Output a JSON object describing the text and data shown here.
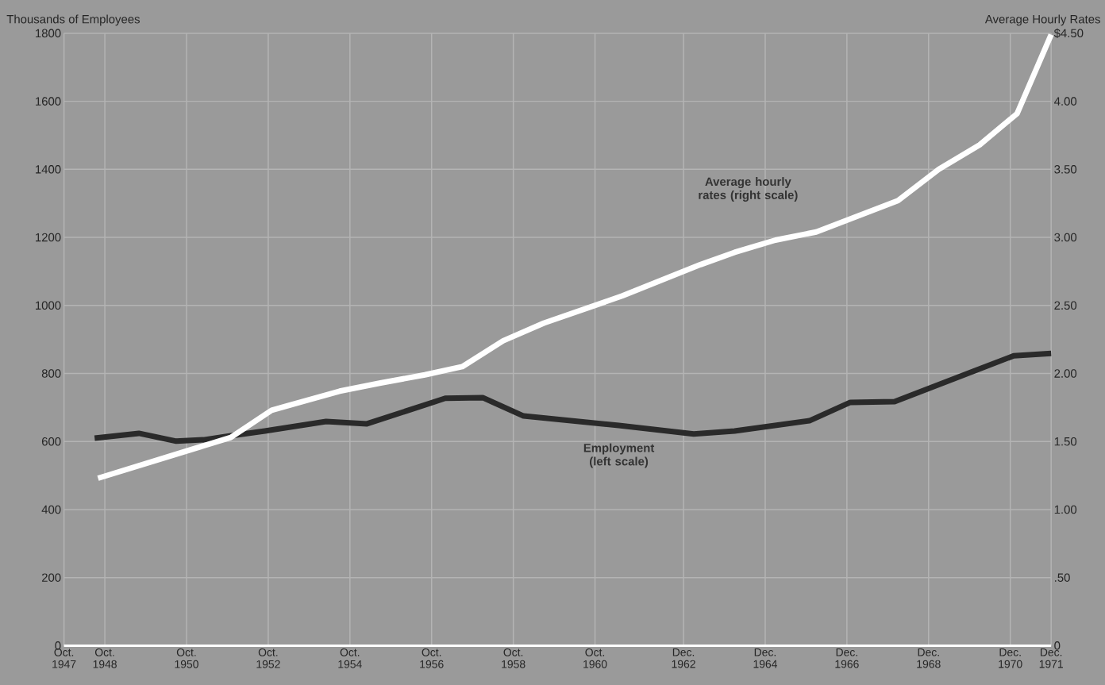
{
  "chart_data": {
    "type": "line",
    "ylabel": "Thousands of Employees",
    "y2label": "Average Hourly Rates",
    "xlim": [
      "1947-10",
      "1971-12"
    ],
    "xticks": [
      {
        "value": "1947-10",
        "label": "Oct. 1947"
      },
      {
        "value": "1948-10",
        "label": "Oct. 1948"
      },
      {
        "value": "1950-10",
        "label": "Oct. 1950"
      },
      {
        "value": "1952-10",
        "label": "Oct. 1952"
      },
      {
        "value": "1954-10",
        "label": "Oct. 1954"
      },
      {
        "value": "1956-10",
        "label": "Oct. 1956"
      },
      {
        "value": "1958-10",
        "label": "Oct. 1958"
      },
      {
        "value": "1960-10",
        "label": "Oct. 1960"
      },
      {
        "value": "1962-12",
        "label": "Dec. 1962"
      },
      {
        "value": "1964-12",
        "label": "Dec. 1964"
      },
      {
        "value": "1966-12",
        "label": "Dec. 1966"
      },
      {
        "value": "1968-12",
        "label": "Dec. 1968"
      },
      {
        "value": "1970-12",
        "label": "Dec. 1970"
      },
      {
        "value": "1971-12",
        "label": "Dec. 1971"
      }
    ],
    "ylim": [
      0,
      1800
    ],
    "yticks": [
      0,
      200,
      400,
      600,
      800,
      1000,
      1200,
      1400,
      1600,
      1800
    ],
    "y2lim": [
      0,
      4.5
    ],
    "y2ticks": [
      0,
      {
        "value": 0.5,
        "label": ".50"
      },
      {
        "value": 1,
        "label": "1.00"
      },
      {
        "value": 1.5,
        "label": "1.50"
      },
      {
        "value": 2,
        "label": "2.00"
      },
      {
        "value": 2.5,
        "label": "2.50"
      },
      {
        "value": 3,
        "label": "3.00"
      },
      {
        "value": 3.5,
        "label": "3.50"
      },
      {
        "value": 4,
        "label": "4.00"
      },
      {
        "value": 4.5,
        "label": "$4.50"
      }
    ],
    "grid": true,
    "series": [
      {
        "name": "Employment (left scale)",
        "color": "#2a2a2a",
        "x": [
          "1948-07",
          "1949-08",
          "1950-07",
          "1951-03",
          "1951-11",
          "1952-09",
          "1954-03",
          "1955-03",
          "1957-02",
          "1958-01",
          "1959-01",
          "1961-05",
          "1963-03",
          "1964-03",
          "1966-01",
          "1967-01",
          "1968-02",
          "1970-01",
          "1971-01",
          "1971-12"
        ],
        "values": [
          610,
          624,
          601,
          605,
          617,
          631,
          659,
          652,
          727,
          729,
          675,
          647,
          622,
          631,
          661,
          715,
          717,
          806,
          852,
          859
        ]
      },
      {
        "name": "Average hourly rates (right scale)",
        "color": "#ffffff",
        "axis": "y2",
        "x": [
          "1948-08",
          "1951-11",
          "1952-11",
          "1954-07",
          "1955-07",
          "1956-08",
          "1957-07",
          "1958-07",
          "1959-07",
          "1961-06",
          "1963-05",
          "1964-03",
          "1965-03",
          "1966-03",
          "1968-03",
          "1969-03",
          "1970-03",
          "1971-02",
          "1971-12"
        ],
        "values": [
          1.23,
          1.53,
          1.73,
          1.87,
          1.93,
          1.99,
          2.05,
          2.24,
          2.37,
          2.57,
          2.8,
          2.89,
          2.98,
          3.04,
          3.27,
          3.5,
          3.68,
          3.91,
          4.49
        ]
      }
    ]
  }
}
